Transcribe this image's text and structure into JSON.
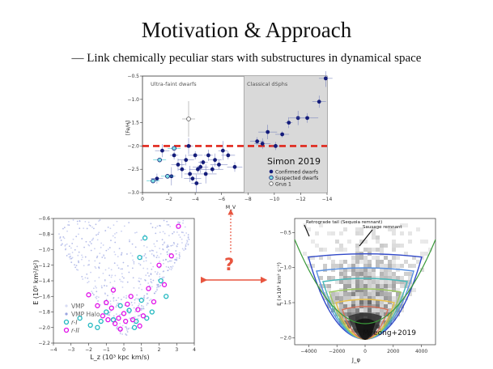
{
  "slide": {
    "title": "Motivation & Approach",
    "subtitle": "— Link chemically peculiar stars with substructures in dynamical space",
    "question_mark": "?"
  },
  "colors": {
    "arrow": "#e8553f",
    "dashed_line": "#e0261b",
    "confirmed": "#141c7a",
    "rII": "#e010e8",
    "rI": "#20b8c0",
    "vmp": "#b8c0ec"
  },
  "chart_data": [
    {
      "type": "scatter",
      "title": "",
      "xlabel": "M_V",
      "ylabel": "[Fe/H]",
      "xlim": [
        0,
        -14
      ],
      "ylim": [
        -3.0,
        -0.5
      ],
      "xticks": [
        "0",
        "−2",
        "−4",
        "−6",
        "−8",
        "−10",
        "−12",
        "−14"
      ],
      "yticks": [
        "−0.5",
        "−1.0",
        "−1.5",
        "−2.0",
        "−2.5",
        "−3.0"
      ],
      "region_labels": [
        "Ultra-faint dwarfs",
        "Classical dSphs"
      ],
      "shaded_region_x": [
        -7.7,
        -14
      ],
      "hline_y": -2.0,
      "annotation": "Simon 2019",
      "legend": [
        "Confirmed dwarfs",
        "Suspected dwarfs",
        "Grus 1"
      ],
      "series": [
        {
          "name": "Confirmed dwarfs",
          "points": [
            [
              -1.5,
              -2.1
            ],
            [
              -2.4,
              -2.2
            ],
            [
              -2.7,
              -2.4
            ],
            [
              -3.0,
              -2.5
            ],
            [
              -3.3,
              -2.3
            ],
            [
              -3.6,
              -2.6
            ],
            [
              -3.8,
              -2.7
            ],
            [
              -4.0,
              -2.2
            ],
            [
              -4.2,
              -2.5
            ],
            [
              -4.4,
              -2.45
            ],
            [
              -4.6,
              -2.35
            ],
            [
              -4.8,
              -2.6
            ],
            [
              -5.0,
              -2.2
            ],
            [
              -5.3,
              -2.5
            ],
            [
              -5.5,
              -2.3
            ],
            [
              -5.8,
              -2.4
            ],
            [
              -6.1,
              -2.1
            ],
            [
              -6.5,
              -2.2
            ],
            [
              -7.0,
              -2.45
            ],
            [
              -3.5,
              -2.0
            ],
            [
              -1.1,
              -2.7
            ],
            [
              -2.2,
              -2.65
            ],
            [
              -4.1,
              -2.8
            ],
            [
              -8.7,
              -1.9
            ],
            [
              -9.1,
              -1.95
            ],
            [
              -9.5,
              -1.7
            ],
            [
              -10.1,
              -2.0
            ],
            [
              -10.6,
              -1.75
            ],
            [
              -11.1,
              -1.5
            ],
            [
              -11.8,
              -1.4
            ],
            [
              -12.5,
              -1.4
            ],
            [
              -13.4,
              -1.05
            ],
            [
              -13.9,
              -0.55
            ]
          ]
        },
        {
          "name": "Suspected dwarfs",
          "points": [
            [
              -0.8,
              -2.75
            ],
            [
              -1.9,
              -2.65
            ],
            [
              -2.4,
              -2.05
            ],
            [
              -1.3,
              -2.3
            ]
          ]
        },
        {
          "name": "Grus 1",
          "points": [
            [
              -3.5,
              -1.42
            ]
          ]
        }
      ]
    },
    {
      "type": "scatter",
      "title": "",
      "xlabel": "L_z (10³ kpc km/s)",
      "ylabel": "E (10⁵ km²/s²)",
      "xlim": [
        -4,
        4
      ],
      "ylim": [
        -2.2,
        -0.6
      ],
      "xticks": [
        "−4",
        "−3",
        "−2",
        "−1",
        "0",
        "1",
        "2",
        "3",
        "4"
      ],
      "yticks": [
        "−0.6",
        "−0.8",
        "−1.0",
        "−1.2",
        "−1.4",
        "−1.6",
        "−1.8",
        "−2.0",
        "−2.2"
      ],
      "legend": [
        "VMP",
        "VMP Halo",
        "r-I",
        "r-II"
      ],
      "series": [
        {
          "name": "r-II",
          "points": [
            [
              -1.5,
              -1.72
            ],
            [
              -1.2,
              -1.85
            ],
            [
              -0.9,
              -1.9
            ],
            [
              -0.7,
              -1.75
            ],
            [
              -0.5,
              -1.95
            ],
            [
              -0.3,
              -1.88
            ],
            [
              0.0,
              -1.82
            ],
            [
              0.2,
              -1.7
            ],
            [
              0.5,
              -1.9
            ],
            [
              0.8,
              -1.77
            ],
            [
              1.1,
              -1.85
            ],
            [
              1.4,
              -1.5
            ],
            [
              2.0,
              -1.2
            ],
            [
              2.3,
              -1.45
            ],
            [
              2.7,
              -1.08
            ],
            [
              3.1,
              -0.7
            ],
            [
              -2.0,
              -1.58
            ],
            [
              -0.2,
              -2.02
            ],
            [
              0.4,
              -1.6
            ],
            [
              -1.0,
              -1.68
            ],
            [
              1.7,
              -1.67
            ],
            [
              0.9,
              -1.98
            ],
            [
              -0.6,
              -1.52
            ],
            [
              0.1,
              -1.92
            ]
          ]
        },
        {
          "name": "r-I",
          "points": [
            [
              -1.9,
              -1.97
            ],
            [
              -1.5,
              -2.0
            ],
            [
              -1.0,
              -1.8
            ],
            [
              -0.6,
              -1.9
            ],
            [
              0.3,
              -1.78
            ],
            [
              0.7,
              -1.92
            ],
            [
              1.0,
              -1.65
            ],
            [
              1.3,
              -1.88
            ],
            [
              1.6,
              -1.8
            ],
            [
              2.1,
              -1.4
            ],
            [
              2.4,
              -1.6
            ],
            [
              -0.2,
              -1.72
            ],
            [
              0.9,
              -1.1
            ],
            [
              1.2,
              -0.85
            ],
            [
              -2.5,
              -1.88
            ],
            [
              0.6,
              -2.0
            ],
            [
              -1.3,
              -1.92
            ]
          ]
        }
      ]
    },
    {
      "type": "heatmap",
      "title": "",
      "xlabel": "J_φ",
      "ylabel": "E (×10⁵ km² s⁻²)",
      "xlim": [
        -5000,
        5000
      ],
      "ylim": [
        -2.1,
        -0.3
      ],
      "xticks": [
        "−4000",
        "−2000",
        "0",
        "2000",
        "4000"
      ],
      "yticks": [
        "−0.5",
        "−1.0",
        "−1.5",
        "−2.0"
      ],
      "annotations": [
        "Retrograde tail (Sequoia remnant)",
        "Sausage remnant"
      ],
      "credit": "Myeong+2019"
    }
  ]
}
